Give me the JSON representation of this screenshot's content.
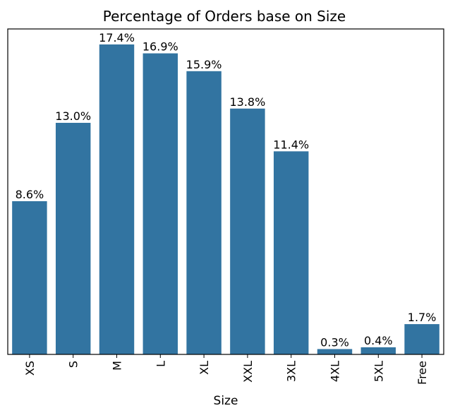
{
  "chart_data": {
    "type": "bar",
    "title": "Percentage of Orders base on Size",
    "xlabel": "Size",
    "ylabel": "",
    "categories": [
      "XS",
      "S",
      "M",
      "L",
      "XL",
      "XXL",
      "3XL",
      "4XL",
      "5XL",
      "Free"
    ],
    "values": [
      8.6,
      13.0,
      17.4,
      16.9,
      15.9,
      13.8,
      11.4,
      0.3,
      0.4,
      1.7
    ],
    "value_labels": [
      "8.6%",
      "13.0%",
      "17.4%",
      "16.9%",
      "15.9%",
      "13.8%",
      "11.4%",
      "0.3%",
      "0.4%",
      "1.7%"
    ],
    "y_axis_visible": false,
    "grid": false,
    "legend": "none",
    "bar_color": "#3274a1"
  }
}
